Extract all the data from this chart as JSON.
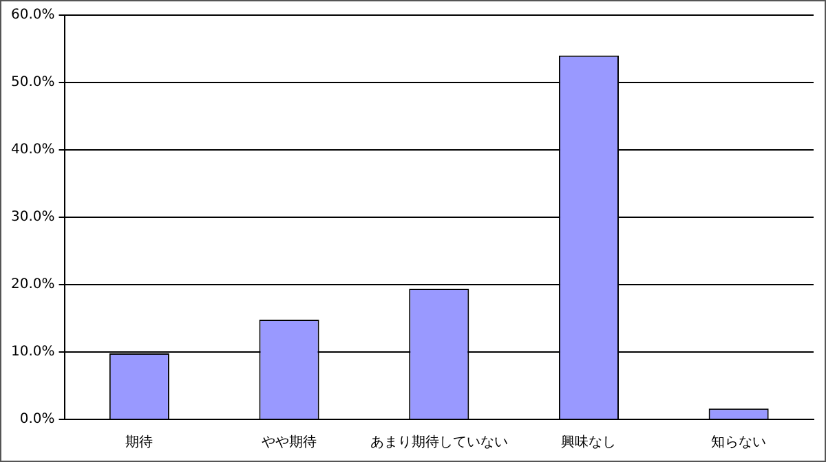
{
  "chart_data": {
    "type": "bar",
    "categories": [
      "期待",
      "やや期待",
      "あまり期待していない",
      "興味なし",
      "知らない"
    ],
    "values": [
      9.8,
      14.8,
      19.4,
      54.0,
      1.6
    ],
    "color": "#9999ff",
    "ylim": [
      0,
      60
    ],
    "yticks": [
      {
        "value": 0,
        "label": "0.0%"
      },
      {
        "value": 10,
        "label": "10.0%"
      },
      {
        "value": 20,
        "label": "20.0%"
      },
      {
        "value": 30,
        "label": "30.0%"
      },
      {
        "value": 40,
        "label": "40.0%"
      },
      {
        "value": 50,
        "label": "50.0%"
      },
      {
        "value": 60,
        "label": "60.0%"
      }
    ],
    "grid": "y"
  }
}
